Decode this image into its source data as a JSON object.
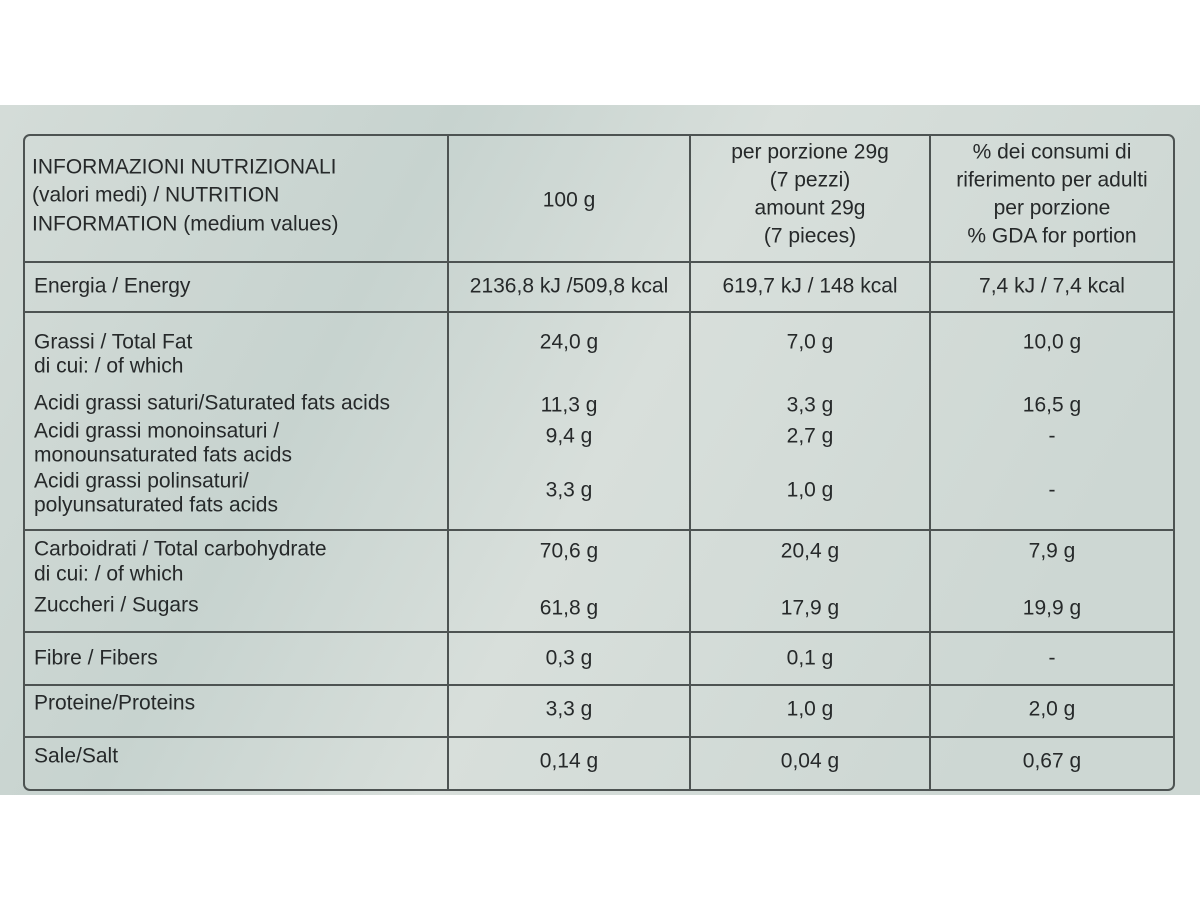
{
  "header": {
    "label": [
      "INFORMAZIONI NUTRIZIONALI",
      "(valori medi) / NUTRITION",
      "INFORMATION (medium values)"
    ],
    "per100": [
      "100 g"
    ],
    "portion": [
      "per porzione 29g",
      "(7 pezzi)",
      "amount 29g",
      "(7 pieces)"
    ],
    "gda": [
      "% dei consumi di",
      "riferimento per adulti",
      "per porzione",
      "% GDA for portion"
    ]
  },
  "rows": [
    {
      "lines": [
        {
          "label": [
            "Energia / Energy"
          ],
          "values": [
            "2136,8 kJ /509,8 kcal",
            "619,7 kJ / 148 kcal",
            "7,4 kJ  / 7,4 kcal"
          ]
        }
      ]
    },
    {
      "lines": [
        {
          "label": [
            "Grassi / Total Fat"
          ],
          "values": [
            "24,0 g",
            "7,0 g",
            "10,0 g"
          ]
        },
        {
          "label": [
            "di cui: / of which"
          ]
        },
        {
          "label": [
            "Acidi grassi saturi/Saturated fats acids"
          ],
          "values": [
            "11,3 g",
            "3,3 g",
            "16,5 g"
          ]
        },
        {
          "label": [
            "Acidi grassi monoinsaturi /",
            "monounsaturated fats acids"
          ],
          "values": [
            "9,4 g",
            "2,7 g",
            "-"
          ]
        },
        {
          "label": [
            "Acidi grassi polinsaturi/",
            "polyunsaturated fats acids"
          ],
          "values": [
            "3,3 g",
            "1,0 g",
            "-"
          ]
        }
      ]
    },
    {
      "lines": [
        {
          "label": [
            "Carboidrati / Total carbohydrate"
          ],
          "values": [
            "70,6 g",
            "20,4 g",
            "7,9 g"
          ]
        },
        {
          "label": [
            "di cui: / of which"
          ]
        },
        {
          "label": [
            "Zuccheri / Sugars"
          ],
          "values": [
            "61,8 g",
            "17,9 g",
            "19,9 g"
          ]
        }
      ]
    },
    {
      "lines": [
        {
          "label": [
            "Fibre / Fibers"
          ],
          "values": [
            "0,3 g",
            "0,1 g",
            "-"
          ]
        }
      ]
    },
    {
      "lines": [
        {
          "label": [
            "Proteine/Proteins"
          ],
          "values": [
            "3,3 g",
            "1,0 g",
            "2,0 g"
          ]
        }
      ]
    },
    {
      "lines": [
        {
          "label": [
            "Sale/Salt"
          ],
          "values": [
            "0,14 g",
            "0,04 g",
            "0,67 g"
          ]
        }
      ]
    }
  ]
}
